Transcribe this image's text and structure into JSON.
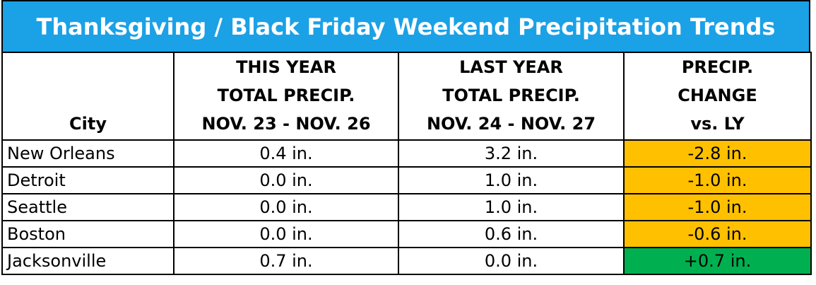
{
  "title": "Thanksgiving / Black Friday Weekend Precipitation Trends",
  "table": {
    "headers": [
      [
        "City"
      ],
      [
        "THIS YEAR",
        "TOTAL PRECIP.",
        "NOV. 23 - NOV. 26"
      ],
      [
        "LAST YEAR",
        "TOTAL PRECIP.",
        "NOV. 24 - NOV. 27"
      ],
      [
        "PRECIP.",
        "CHANGE",
        "vs. LY"
      ]
    ],
    "rows": [
      {
        "city": "New Orleans",
        "this_year": "0.4 in.",
        "last_year": "3.2 in.",
        "change": "-2.8 in.",
        "change_color": "#ffc000"
      },
      {
        "city": "Detroit",
        "this_year": "0.0 in.",
        "last_year": "1.0 in.",
        "change": "-1.0 in.",
        "change_color": "#ffc000"
      },
      {
        "city": "Seattle",
        "this_year": "0.0 in.",
        "last_year": "1.0 in.",
        "change": "-1.0 in.",
        "change_color": "#ffc000"
      },
      {
        "city": "Boston",
        "this_year": "0.0 in.",
        "last_year": "0.6 in.",
        "change": "-0.6 in.",
        "change_color": "#ffc000"
      },
      {
        "city": "Jacksonville",
        "this_year": "0.7 in.",
        "last_year": "0.0 in.",
        "change": "+0.7 in.",
        "change_color": "#00b050"
      }
    ]
  }
}
